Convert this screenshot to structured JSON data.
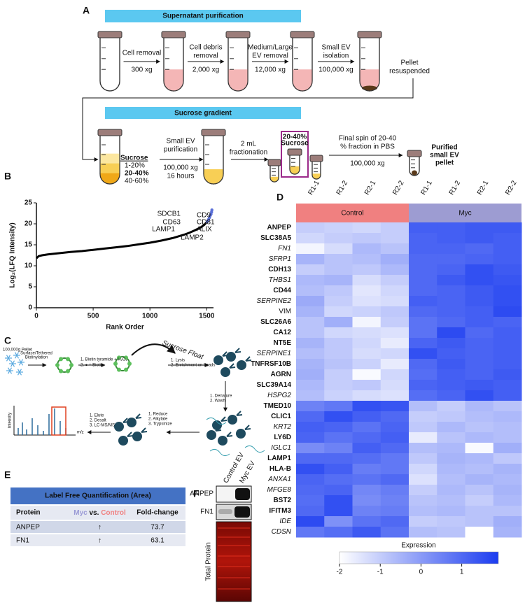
{
  "figure": {
    "labels": [
      "A",
      "B",
      "C",
      "D",
      "E",
      "F"
    ]
  },
  "panel_a": {
    "title1": "Supernatant purification",
    "steps": [
      {
        "lines": [
          "Cell removal"
        ],
        "speed": "300 xg"
      },
      {
        "lines": [
          "Cell debris",
          "removal"
        ],
        "speed": "2,000 xg"
      },
      {
        "lines": [
          "Medium/Large",
          "EV removal"
        ],
        "speed": "12,000 xg"
      },
      {
        "lines": [
          "Small EV",
          "isolation"
        ],
        "speed": "100,000 xg"
      }
    ],
    "pellet": [
      "Pellet",
      "resuspended"
    ],
    "title2": "Sucrose gradient",
    "sucrose": "Sucrose",
    "fractions": [
      "1-20%",
      "20-40%",
      "40-60%"
    ],
    "purification": [
      "Small EV",
      "purification"
    ],
    "purification_conditions": [
      "100,000 xg",
      "16 hours"
    ],
    "fractionation": [
      "2 mL",
      "fractionation"
    ],
    "boxed": [
      "20-40%",
      "Sucrose"
    ],
    "final_spin": [
      "Final spin of 20-40",
      "% fraction in PBS"
    ],
    "final_speed": "100,000 xg",
    "result": [
      "Purified",
      "small EV",
      "pellet"
    ]
  },
  "panel_c": {
    "pellet": "100,000g Pellet",
    "biotinylation": [
      "Surface/Tethered",
      "Biotinylation"
    ],
    "biotin_steps": [
      "1. Biotin tyramide + H₂O₂",
      "2. ● = Biotin"
    ],
    "float": "Sucrose Float",
    "lysis": [
      "1. Lysis",
      "2. Enrichment on beads"
    ],
    "denature": [
      "1. Denature",
      "2. Wash"
    ],
    "digest": [
      "1. Reduce",
      "2. Alkylate",
      "3. Trypsinize"
    ],
    "elute": [
      "1. Elute",
      "2. Desalt",
      "3. LC-MS/MS"
    ],
    "ylabel": "Intensity",
    "xlabel": "m/z"
  },
  "panel_e": {
    "title": "Label Free Quantification (Area)",
    "header": [
      "Protein",
      [
        "Myc",
        " vs. ",
        "Control"
      ],
      "Fold-change"
    ],
    "rows": [
      [
        "ANPEP",
        "↑",
        "73.7"
      ],
      [
        "FN1",
        "↑",
        "63.1"
      ]
    ]
  },
  "panel_f": {
    "lanes": [
      "Control EV",
      "Myc EV"
    ],
    "rows": [
      "ANPEP",
      "FN1"
    ],
    "total": "Total Protein"
  },
  "chart_data": [
    {
      "type": "line",
      "ylabel": "Log₂(LFQ Intensity)",
      "xlabel": "Rank Order",
      "color": "#000000",
      "x": [
        1,
        20,
        50,
        100,
        200,
        300,
        400,
        500,
        600,
        700,
        800,
        900,
        1000,
        1100,
        1200,
        1300,
        1350,
        1400,
        1450,
        1480,
        1500,
        1520,
        1530,
        1540,
        1545
      ],
      "values": [
        11.8,
        12.3,
        12.5,
        12.7,
        13,
        13.3,
        13.5,
        13.8,
        14.1,
        14.4,
        14.7,
        15.1,
        15.5,
        16,
        16.6,
        17.4,
        17.9,
        18.5,
        19.2,
        19.8,
        20.4,
        21.2,
        21.8,
        22.5,
        23.2
      ],
      "markers": {
        "color": "#5a6fd8",
        "x": [
          1505,
          1515,
          1525,
          1532,
          1538,
          1543,
          1546
        ],
        "values": [
          20.5,
          21,
          21.5,
          22,
          22.3,
          22.8,
          23.3
        ]
      },
      "annotations": [
        "SDCB1",
        "CD9",
        "CD63",
        "CD81",
        "LAMP1",
        "ALIX",
        "LAMP2"
      ],
      "xlim": [
        0,
        1560
      ],
      "xticks": [
        0,
        500,
        1000,
        1500
      ],
      "ylim": [
        0,
        25
      ],
      "yticks": [
        0,
        5,
        10,
        15,
        20,
        25
      ]
    },
    {
      "type": "heatmap",
      "columns": [
        "R1-1",
        "R1-2",
        "R2-1",
        "R2-2",
        "R1-1",
        "R1-2",
        "R2-1",
        "R2-2"
      ],
      "groups": [
        {
          "name": "Control",
          "color": "#f08080"
        },
        {
          "name": "Myc",
          "color": "#9d9cd2"
        }
      ],
      "rows": [
        "ANPEP",
        "SLC38A5",
        "FN1",
        "SFRP1",
        "CDH13",
        "THBS1",
        "CD44",
        "SERPINE2",
        "VIM",
        "SLC26A6",
        "CA12",
        "NT5E",
        "SERPINE1",
        "TNFRSF10B",
        "AGRN",
        "SLC39A14",
        "HSPG2",
        "TMED10",
        "CLIC1",
        "KRT2",
        "LY6D",
        "IGLC1",
        "LAMP1",
        "HLA-B",
        "ANXA1",
        "MFGE8",
        "BST2",
        "IFITM3",
        "IDE",
        "CDSN"
      ],
      "row_styles": [
        "bold",
        "bold",
        "italic",
        "italic",
        "bold",
        "italic",
        "bold",
        "italic",
        "normal",
        "bold",
        "bold",
        "bold",
        "italic",
        "bold",
        "bold",
        "bold",
        "italic",
        "bold",
        "bold",
        "italic",
        "bold",
        "italic",
        "bold",
        "bold",
        "italic",
        "italic",
        "bold",
        "bold",
        "italic",
        "italic"
      ],
      "values": [
        [
          -1.0,
          -1.1,
          -1.2,
          -1.0,
          1.2,
          1.2,
          1.3,
          1.3
        ],
        [
          -1.2,
          -1.0,
          -0.9,
          -1.0,
          1.1,
          1.2,
          1.3,
          1.2
        ],
        [
          -1.8,
          -1.3,
          -0.6,
          -0.8,
          1.1,
          1.1,
          1.0,
          1.2
        ],
        [
          -0.5,
          -0.8,
          -0.7,
          -0.4,
          1.0,
          1.0,
          1.1,
          1.2
        ],
        [
          -1.0,
          -0.8,
          -0.9,
          -0.6,
          1.0,
          1.1,
          1.5,
          1.3
        ],
        [
          -0.6,
          -0.5,
          -1.3,
          -1.0,
          1.0,
          1.3,
          1.5,
          1.4
        ],
        [
          -0.7,
          -0.9,
          -1.5,
          -1.2,
          1.0,
          1.1,
          1.3,
          1.5
        ],
        [
          -0.3,
          -1.0,
          -1.4,
          -1.3,
          1.2,
          1.1,
          1.3,
          1.5
        ],
        [
          -0.5,
          -1.2,
          -1.1,
          -0.9,
          1.0,
          1.1,
          1.2,
          1.6
        ],
        [
          -0.8,
          -0.4,
          -1.8,
          -1.0,
          0.8,
          1.0,
          1.2,
          1.1
        ],
        [
          -0.8,
          -1.2,
          -1.3,
          -1.4,
          0.8,
          1.6,
          1.0,
          1.2
        ],
        [
          -0.5,
          -0.9,
          -1.2,
          -1.6,
          1.1,
          1.3,
          1.1,
          1.2
        ],
        [
          -0.7,
          -0.9,
          -1.3,
          -1.2,
          1.5,
          1.2,
          1.1,
          1.2
        ],
        [
          -0.5,
          -0.8,
          -1.1,
          -1.6,
          1.0,
          1.3,
          1.1,
          1.2
        ],
        [
          -0.4,
          -1.0,
          -1.9,
          -1.2,
          0.9,
          1.2,
          1.1,
          1.3
        ],
        [
          -0.6,
          -1.0,
          -0.9,
          -1.3,
          1.1,
          1.2,
          1.3,
          1.2
        ],
        [
          -0.7,
          -1.1,
          -1.3,
          -1.4,
          0.9,
          1.1,
          1.5,
          1.2
        ],
        [
          0.5,
          0.7,
          1.5,
          1.4,
          -0.7,
          -1.0,
          -0.6,
          -0.8
        ],
        [
          1.0,
          1.5,
          1.2,
          1.0,
          -1.0,
          -0.9,
          -0.7,
          -0.6
        ],
        [
          1.2,
          1.1,
          0.8,
          1.1,
          -0.9,
          -0.6,
          -0.8,
          -0.7
        ],
        [
          1.1,
          0.8,
          1.0,
          1.2,
          -1.6,
          -0.8,
          -0.6,
          -0.7
        ],
        [
          0.3,
          0.5,
          1.2,
          1.0,
          -0.7,
          -0.6,
          -1.9,
          -0.4
        ],
        [
          1.0,
          1.0,
          0.9,
          0.7,
          -0.9,
          -0.5,
          -0.6,
          -0.9
        ],
        [
          1.5,
          1.2,
          0.6,
          0.7,
          -1.2,
          -0.6,
          -0.7,
          -0.5
        ],
        [
          1.1,
          0.9,
          0.8,
          1.0,
          -1.4,
          -0.7,
          -0.5,
          -0.6
        ],
        [
          1.0,
          1.1,
          0.4,
          0.6,
          -1.0,
          -0.6,
          -0.8,
          -0.5
        ],
        [
          0.9,
          1.5,
          0.3,
          0.5,
          -0.8,
          -0.7,
          -1.0,
          -0.6
        ],
        [
          1.0,
          1.5,
          0.5,
          0.6,
          -0.7,
          -0.6,
          -0.8,
          -0.8
        ],
        [
          1.6,
          0.2,
          0.8,
          1.0,
          -1.0,
          -0.9,
          -0.8,
          -0.4
        ],
        [
          0.7,
          0.9,
          1.3,
          0.8,
          -0.7,
          -0.8,
          -2.0,
          -0.5
        ]
      ],
      "colorbar_label": "Expression",
      "clim": [
        -2,
        1.9
      ],
      "cticks": [
        -2,
        -1,
        0,
        1
      ],
      "colors": [
        "#ffffff",
        "#1b3cf0"
      ]
    }
  ]
}
